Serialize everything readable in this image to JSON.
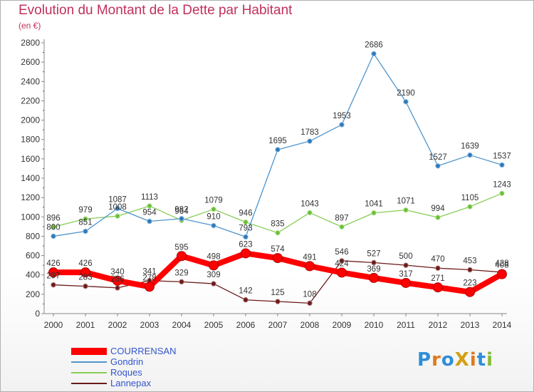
{
  "title": "Evolution du Montant de la Dette par Habitant",
  "subtitle": "(en €)",
  "logo_text": "ProXiti",
  "chart_data": {
    "type": "line",
    "x": [
      "2000",
      "2001",
      "2002",
      "2003",
      "2004",
      "2005",
      "2006",
      "2007",
      "2008",
      "2009",
      "2010",
      "2011",
      "2012",
      "2013",
      "2014"
    ],
    "ylim": [
      0,
      2800
    ],
    "yticks": [
      0,
      200,
      400,
      600,
      800,
      1000,
      1200,
      1400,
      1600,
      1800,
      2000,
      2200,
      2400,
      2600,
      2800
    ],
    "grid": false,
    "legend_position": "bottom-left",
    "series": [
      {
        "name": "COURRENSAN",
        "color": "#ff0000",
        "values": [
          426,
          426,
          340,
          278,
          595,
          498,
          623,
          574,
          491,
          424,
          369,
          317,
          271,
          223,
          408
        ]
      },
      {
        "name": "Gondrin",
        "color": "#4f95cc",
        "values": [
          800,
          851,
          1087,
          954,
          982,
          910,
          793,
          1695,
          1783,
          1953,
          2686,
          2190,
          1527,
          1639,
          1537
        ]
      },
      {
        "name": "Roques",
        "color": "#88cc55",
        "values": [
          896,
          979,
          1008,
          1113,
          964,
          1079,
          946,
          835,
          1043,
          897,
          1041,
          1071,
          994,
          1105,
          1243
        ]
      },
      {
        "name": "Lannepax",
        "color": "#6b1a1a",
        "values": [
          297,
          283,
          266,
          341,
          329,
          309,
          142,
          125,
          108,
          546,
          527,
          500,
          470,
          453,
          428
        ]
      }
    ]
  }
}
